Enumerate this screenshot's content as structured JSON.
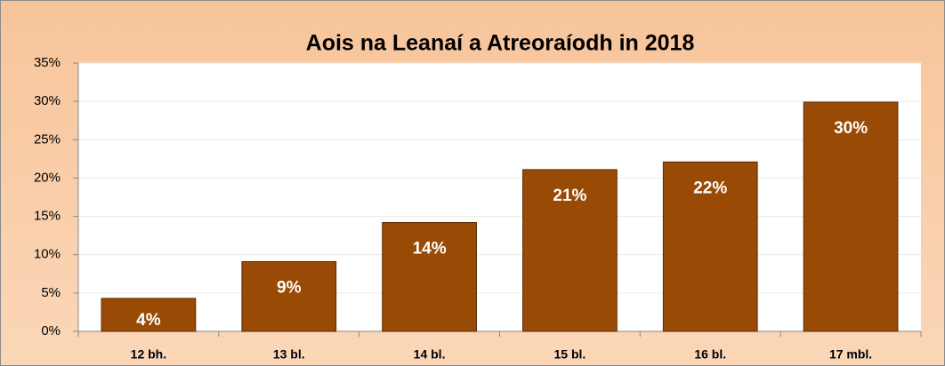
{
  "chart_data": {
    "type": "bar",
    "title": "Aois na Leanaí a Atreoraíodh  in 2018",
    "categories": [
      "12 bh.",
      "13 bl.",
      "14 bl.",
      "15 bl.",
      "16 bl.",
      "17 mbl."
    ],
    "values": [
      4.3,
      9.1,
      14.2,
      21.1,
      22.1,
      29.9
    ],
    "value_labels": [
      "4%",
      "9%",
      "14%",
      "21%",
      "22%",
      "30%"
    ],
    "color": "#994a05",
    "ylim": [
      0,
      35
    ],
    "yticks": [
      {
        "value": 0,
        "label": "0%"
      },
      {
        "value": 5,
        "label": "5%"
      },
      {
        "value": 10,
        "label": "10%"
      },
      {
        "value": 15,
        "label": "15%"
      },
      {
        "value": 20,
        "label": "20%"
      },
      {
        "value": 25,
        "label": "25%"
      },
      {
        "value": 30,
        "label": "30%"
      },
      {
        "value": 35,
        "label": "35%"
      }
    ],
    "grid": true
  }
}
